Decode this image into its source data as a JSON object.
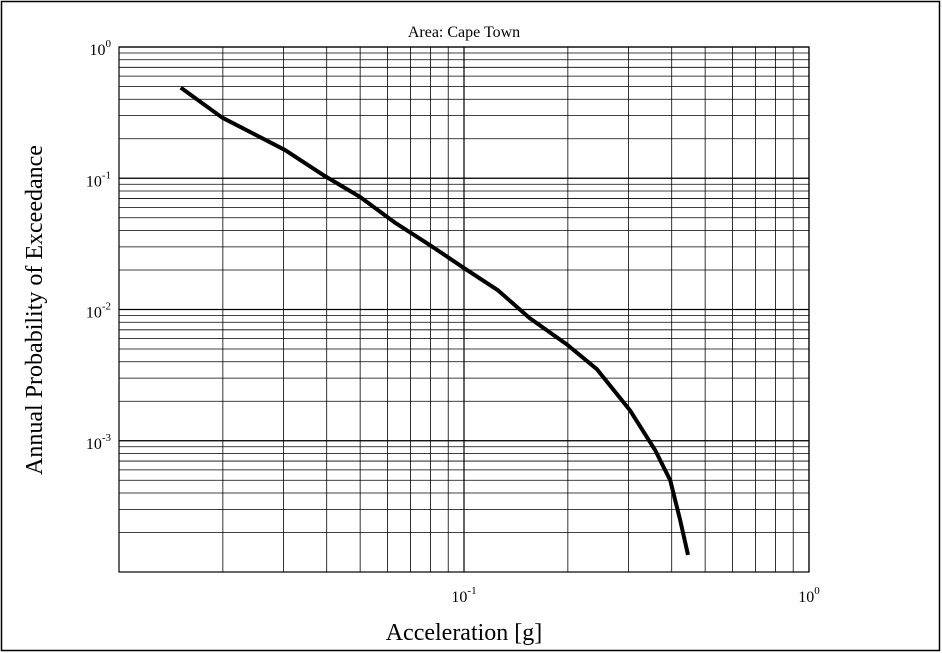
{
  "chart_data": {
    "type": "line",
    "title": "Area: Cape Town",
    "x_label": "Acceleration [g]",
    "y_label": "Annual Probability of Exceedance",
    "x_log": true,
    "y_log": true,
    "grid": true,
    "minor_grid": true,
    "xlim": [
      0.01,
      1
    ],
    "ylim": [
      0.0001,
      1
    ],
    "xticks": [
      {
        "value": 0.1,
        "label": "10",
        "exponent": "-1"
      },
      {
        "value": 1,
        "label": "10",
        "exponent": "0"
      }
    ],
    "yticks": [
      {
        "value": 0.001,
        "label": "10",
        "exponent": "-3"
      },
      {
        "value": 0.01,
        "label": "10",
        "exponent": "-2"
      },
      {
        "value": 0.1,
        "label": "10",
        "exponent": "-1"
      },
      {
        "value": 1,
        "label": "10",
        "exponent": "0"
      }
    ],
    "series": [
      {
        "color": "#000000",
        "x": [
          0.0151,
          0.0199,
          0.0303,
          0.0395,
          0.05,
          0.063,
          0.0796,
          0.1,
          0.125,
          0.155,
          0.199,
          0.243,
          0.303,
          0.358,
          0.396,
          0.423,
          0.446
        ],
        "values": [
          0.49,
          0.29,
          0.164,
          0.104,
          0.072,
          0.046,
          0.031,
          0.0207,
          0.0141,
          0.0086,
          0.0054,
          0.0035,
          0.0017,
          0.00085,
          0.0005,
          0.00025,
          0.000135
        ]
      }
    ]
  }
}
